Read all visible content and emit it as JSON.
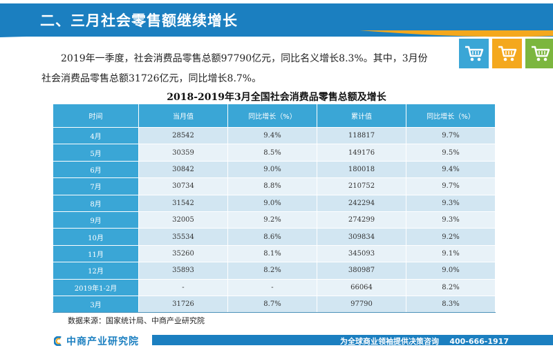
{
  "header": {
    "title": "二、三月社会零售额继续增长"
  },
  "cart_icons": [
    {
      "icon": "cart-icon",
      "color": "#3aa6d6"
    },
    {
      "icon": "cart-icon",
      "color": "#f4a81d"
    },
    {
      "icon": "cart-icon",
      "color": "#7cb63e"
    }
  ],
  "paragraph": {
    "line1": "2019年一季度，社会消费品零售总额97790亿元，同比名义增长8.3%。其中，3月份",
    "line2": "社会消费品零售总额31726亿元，同比增长8.7%。"
  },
  "table": {
    "title": "2018-2019年3月全国社会消费品零售总额及增长",
    "headers": [
      "时间",
      "当月值",
      "同比增长（%）",
      "累计值",
      "同比增长（%）"
    ],
    "rows": [
      [
        "4月",
        "28542",
        "9.4%",
        "118817",
        "9.7%"
      ],
      [
        "5月",
        "30359",
        "8.5%",
        "149176",
        "9.5%"
      ],
      [
        "6月",
        "30842",
        "9.0%",
        "180018",
        "9.4%"
      ],
      [
        "7月",
        "30734",
        "8.8%",
        "210752",
        "9.7%"
      ],
      [
        "8月",
        "31542",
        "9.0%",
        "242294",
        "9.3%"
      ],
      [
        "9月",
        "32005",
        "9.2%",
        "274299",
        "9.3%"
      ],
      [
        "10月",
        "35534",
        "8.6%",
        "309834",
        "9.2%"
      ],
      [
        "11月",
        "35260",
        "8.1%",
        "345093",
        "9.1%"
      ],
      [
        "12月",
        "35893",
        "8.2%",
        "380987",
        "9.0%"
      ],
      [
        "2019年1-2月",
        "-",
        "-",
        "66064",
        "8.2%"
      ],
      [
        "3月",
        "31726",
        "8.7%",
        "97790",
        "8.3%"
      ]
    ]
  },
  "source": "数据来源：国家统计局、中商产业研究院",
  "footer": {
    "logo_text": "中商产业研究院",
    "slogan": "为全球商业领袖提供决策咨询    400-666-1917"
  },
  "colors": {
    "brand_blue": "#1b7fc0",
    "table_header": "#3aa6d6",
    "accent_orange": "#f4a81d",
    "accent_green": "#7cb63e"
  }
}
